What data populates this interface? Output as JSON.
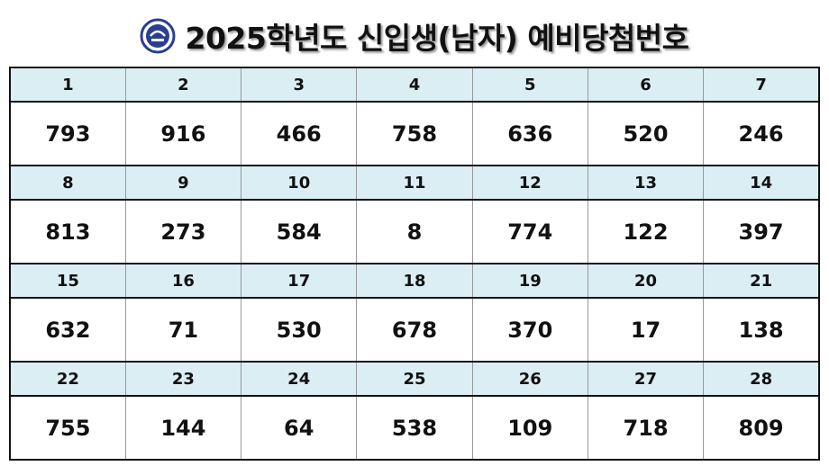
{
  "header": {
    "title": "2025학년도 신입생(남자) 예비당첨번호"
  },
  "table": {
    "blocks": [
      {
        "headers": [
          1,
          2,
          3,
          4,
          5,
          6,
          7
        ],
        "values": [
          793,
          916,
          466,
          758,
          636,
          520,
          246
        ]
      },
      {
        "headers": [
          8,
          9,
          10,
          11,
          12,
          13,
          14
        ],
        "values": [
          813,
          273,
          584,
          8,
          774,
          122,
          397
        ]
      },
      {
        "headers": [
          15,
          16,
          17,
          18,
          19,
          20,
          21
        ],
        "values": [
          632,
          71,
          530,
          678,
          370,
          17,
          138
        ]
      },
      {
        "headers": [
          22,
          23,
          24,
          25,
          26,
          27,
          28
        ],
        "values": [
          755,
          144,
          64,
          538,
          109,
          718,
          809
        ]
      }
    ]
  }
}
